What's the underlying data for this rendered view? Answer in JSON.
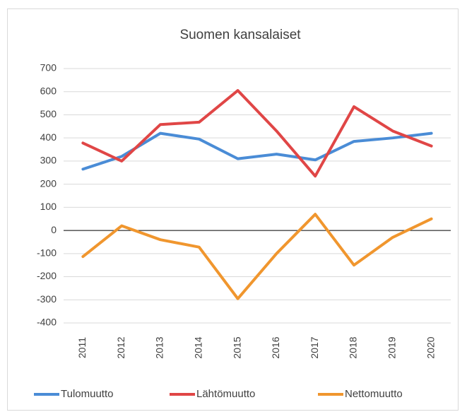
{
  "chart_data": {
    "type": "line",
    "title": "Suomen kansalaiset",
    "categories": [
      "2011",
      "2012",
      "2013",
      "2014",
      "2015",
      "2016",
      "2017",
      "2018",
      "2019",
      "2020"
    ],
    "series": [
      {
        "name": "Tulomuutto",
        "color": "#4a8cd6",
        "values": [
          265,
          320,
          420,
          395,
          310,
          330,
          305,
          385,
          400,
          420
        ]
      },
      {
        "name": "Lähtömuutto",
        "color": "#e04646",
        "values": [
          378,
          300,
          458,
          468,
          605,
          430,
          235,
          535,
          430,
          365
        ]
      },
      {
        "name": "Nettomuutto",
        "color": "#f0962e",
        "values": [
          -113,
          20,
          -40,
          -72,
          -295,
          -100,
          70,
          -150,
          -30,
          50
        ]
      }
    ],
    "ylim": [
      -400,
      700
    ],
    "yticks": [
      -400,
      -300,
      -200,
      -100,
      0,
      100,
      200,
      300,
      400,
      500,
      600,
      700
    ],
    "grid": true,
    "legend": "bottom"
  }
}
